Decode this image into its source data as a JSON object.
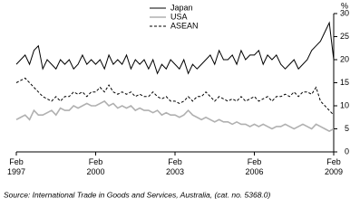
{
  "chart_data": {
    "type": "line",
    "y_label": "%",
    "source": "Source: International Trade in Goods and Services, Australia, (cat. no. 5368.0)",
    "x": [
      "1997-02",
      "1997-04",
      "1997-06",
      "1997-08",
      "1997-10",
      "1997-12",
      "1998-02",
      "1998-04",
      "1998-06",
      "1998-08",
      "1998-10",
      "1998-12",
      "1999-02",
      "1999-04",
      "1999-06",
      "1999-08",
      "1999-10",
      "1999-12",
      "2000-02",
      "2000-04",
      "2000-06",
      "2000-08",
      "2000-10",
      "2000-12",
      "2001-02",
      "2001-04",
      "2001-06",
      "2001-08",
      "2001-10",
      "2001-12",
      "2002-02",
      "2002-04",
      "2002-06",
      "2002-08",
      "2002-10",
      "2002-12",
      "2003-02",
      "2003-04",
      "2003-06",
      "2003-08",
      "2003-10",
      "2003-12",
      "2004-02",
      "2004-04",
      "2004-06",
      "2004-08",
      "2004-10",
      "2004-12",
      "2005-02",
      "2005-04",
      "2005-06",
      "2005-08",
      "2005-10",
      "2005-12",
      "2006-02",
      "2006-04",
      "2006-06",
      "2006-08",
      "2006-10",
      "2006-12",
      "2007-02",
      "2007-04",
      "2007-06",
      "2007-08",
      "2007-10",
      "2007-12",
      "2008-02",
      "2008-04",
      "2008-06",
      "2008-08",
      "2008-10",
      "2008-12",
      "2009-02"
    ],
    "xlim": [
      "1997-02",
      "2009-02"
    ],
    "xticks": [
      {
        "value": "1997-02",
        "label": "Feb 1997"
      },
      {
        "value": "2000-02",
        "label": "Feb 2000"
      },
      {
        "value": "2003-02",
        "label": "Feb 2003"
      },
      {
        "value": "2006-02",
        "label": "Feb 2006"
      },
      {
        "value": "2009-02",
        "label": "Feb 2009"
      }
    ],
    "ylim": [
      0,
      30
    ],
    "yticks": [
      0,
      5,
      10,
      15,
      20,
      25,
      30
    ],
    "series": [
      {
        "name": "Japan",
        "color": "#000000",
        "dash": false,
        "values": [
          19,
          20,
          21,
          19,
          22,
          23,
          18,
          20,
          19,
          18,
          20,
          19,
          20,
          18,
          19,
          21,
          19,
          20,
          19,
          20,
          18,
          21,
          19,
          20,
          19,
          21,
          18,
          20,
          19,
          20,
          18,
          20,
          17,
          19,
          18,
          20,
          19,
          18,
          20,
          17,
          19,
          18,
          19,
          20,
          21,
          19,
          22,
          20,
          20,
          21,
          19,
          22,
          20,
          21,
          21,
          22,
          19,
          21,
          20,
          21,
          19,
          18,
          19,
          20,
          18,
          19,
          20,
          22,
          23,
          24,
          26,
          28,
          20
        ]
      },
      {
        "name": "USA",
        "color": "#b0b0b0",
        "dash": false,
        "values": [
          7,
          7.5,
          8,
          7,
          9,
          8,
          8,
          8.5,
          9,
          8,
          9.5,
          9,
          9,
          10,
          9.5,
          10,
          10.5,
          10,
          10,
          10.5,
          11,
          10,
          10.5,
          9.5,
          10,
          9.5,
          10,
          9,
          9.5,
          9,
          9,
          8.5,
          9,
          8,
          8.5,
          8,
          8,
          7.5,
          8,
          9,
          8,
          7.5,
          7,
          7.5,
          7,
          6.5,
          7,
          6.5,
          6.5,
          6,
          6.5,
          6,
          6,
          5.5,
          6,
          5.5,
          6,
          5.5,
          5,
          5.5,
          5.5,
          6,
          5.5,
          5,
          5.5,
          6,
          5.5,
          5,
          6,
          5.5,
          5,
          4.5,
          5
        ]
      },
      {
        "name": "ASEAN",
        "color": "#000000",
        "dash": true,
        "values": [
          15,
          15.5,
          16,
          15,
          14,
          13,
          12,
          11.5,
          11,
          12,
          11,
          12,
          12,
          13,
          12.5,
          13,
          12,
          13,
          13,
          14,
          13,
          14.5,
          13,
          12.5,
          13,
          12.5,
          13,
          12,
          12.5,
          12,
          12,
          13,
          12,
          11.5,
          12,
          11,
          11,
          10.5,
          11,
          12,
          11,
          12,
          12,
          13,
          12,
          11,
          12,
          11.5,
          11,
          11.5,
          11,
          12,
          11,
          11.5,
          12,
          11,
          11.5,
          12,
          11,
          12,
          12,
          12.5,
          12,
          13,
          12,
          13,
          13,
          12.5,
          14,
          11,
          10,
          9,
          8
        ]
      }
    ]
  }
}
